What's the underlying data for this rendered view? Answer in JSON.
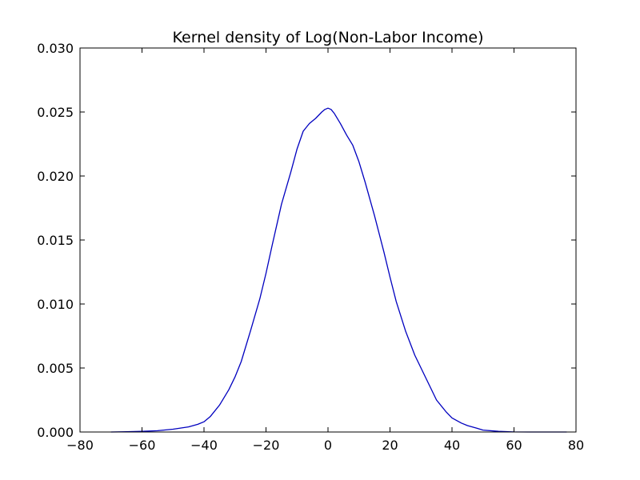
{
  "chart_data": {
    "type": "line",
    "title": "Kernel density of Log(Non-Labor Income)",
    "xlabel": "",
    "ylabel": "",
    "xlim": [
      -80,
      80
    ],
    "ylim": [
      0,
      0.03
    ],
    "x_ticks": [
      -80,
      -60,
      -40,
      -20,
      0,
      20,
      40,
      60,
      80
    ],
    "x_tick_labels": [
      "−80",
      "−60",
      "−40",
      "−20",
      "0",
      "20",
      "40",
      "60",
      "80"
    ],
    "y_ticks": [
      0,
      0.005,
      0.01,
      0.015,
      0.02,
      0.025,
      0.03
    ],
    "y_tick_labels": [
      "0.000",
      "0.005",
      "0.010",
      "0.015",
      "0.020",
      "0.025",
      "0.030"
    ],
    "grid": false,
    "legend": "none",
    "series": [
      {
        "color": "#0000bf",
        "x": [
          -70,
          -65,
          -60,
          -55,
          -50,
          -45,
          -42,
          -40,
          -38,
          -35,
          -32,
          -30,
          -28,
          -25,
          -22,
          -20,
          -18,
          -15,
          -12,
          -10,
          -8,
          -6,
          -4,
          -2,
          -1,
          0,
          1,
          2,
          4,
          6,
          8,
          10,
          12,
          15,
          18,
          20,
          22,
          25,
          28,
          30,
          32,
          35,
          38,
          40,
          43,
          45,
          48,
          50,
          55,
          60,
          65,
          70,
          77
        ],
        "y": [
          0.0,
          2e-05,
          5e-05,
          0.0001,
          0.00022,
          0.0004,
          0.0006,
          0.0008,
          0.0012,
          0.0021,
          0.0033,
          0.0043,
          0.0055,
          0.0079,
          0.0104,
          0.0124,
          0.0146,
          0.0178,
          0.0203,
          0.0221,
          0.0235,
          0.0241,
          0.0245,
          0.025,
          0.0252,
          0.0253,
          0.0252,
          0.0249,
          0.0241,
          0.0232,
          0.0224,
          0.0211,
          0.0195,
          0.0169,
          0.0141,
          0.0121,
          0.0102,
          0.0079,
          0.006,
          0.005,
          0.004,
          0.0025,
          0.0016,
          0.0011,
          0.0007,
          0.0005,
          0.0003,
          0.00015,
          5e-05,
          1e-05,
          0.0,
          0.0,
          0.0
        ]
      }
    ]
  }
}
